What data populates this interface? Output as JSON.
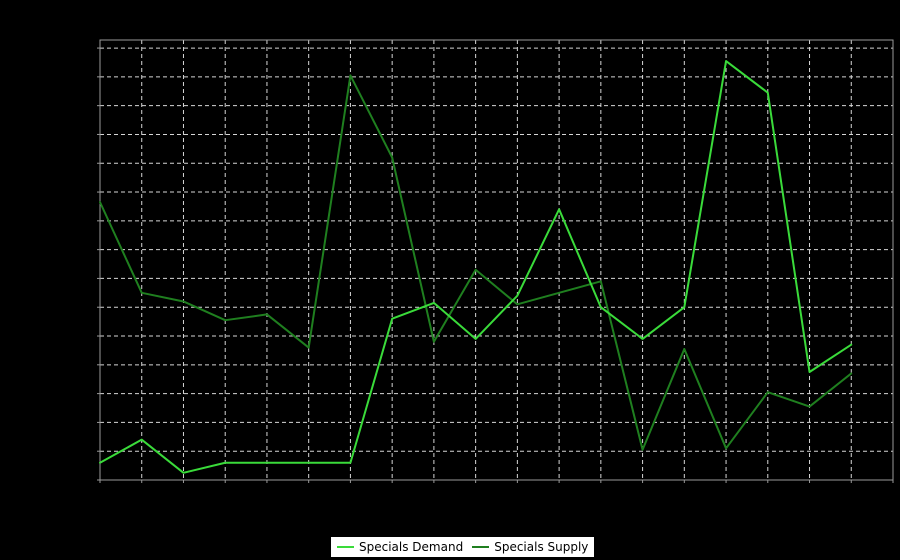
{
  "chart_data": {
    "type": "line",
    "title": "",
    "xlabel": "",
    "ylabel": "",
    "x": [
      0,
      1,
      2,
      3,
      4,
      5,
      6,
      7,
      8,
      9,
      10,
      11,
      12,
      13,
      14,
      15,
      16,
      17,
      18
    ],
    "series": [
      {
        "name": "Specials Demand",
        "color": "#3adb3a",
        "values": [
          0.6,
          1.4,
          0.25,
          0.6,
          0.6,
          0.6,
          0.6,
          5.6,
          6.15,
          4.9,
          6.4,
          9.4,
          6.0,
          4.9,
          6.0,
          14.55,
          13.45,
          3.75,
          4.7
        ]
      },
      {
        "name": "Specials Supply",
        "color": "#1f7f1f",
        "values": [
          9.65,
          6.5,
          6.2,
          5.55,
          5.75,
          4.6,
          14.05,
          11.2,
          4.8,
          7.3,
          6.1,
          6.5,
          6.9,
          1.05,
          4.55,
          1.1,
          3.05,
          2.55,
          3.7
        ]
      }
    ],
    "xlim": [
      0,
      19
    ],
    "ylim": [
      0,
      15.28
    ],
    "grid": true,
    "grid_style": "dashed",
    "gridline_color": "#d6d6d6",
    "border_color": "#9a9a9a",
    "background": "#000000",
    "plot_background": "#000000",
    "axis_tick_labels_visible": false,
    "legend_position": "bottom-center",
    "legend_background": "#ffffff",
    "legend_text_color": "#000000"
  }
}
